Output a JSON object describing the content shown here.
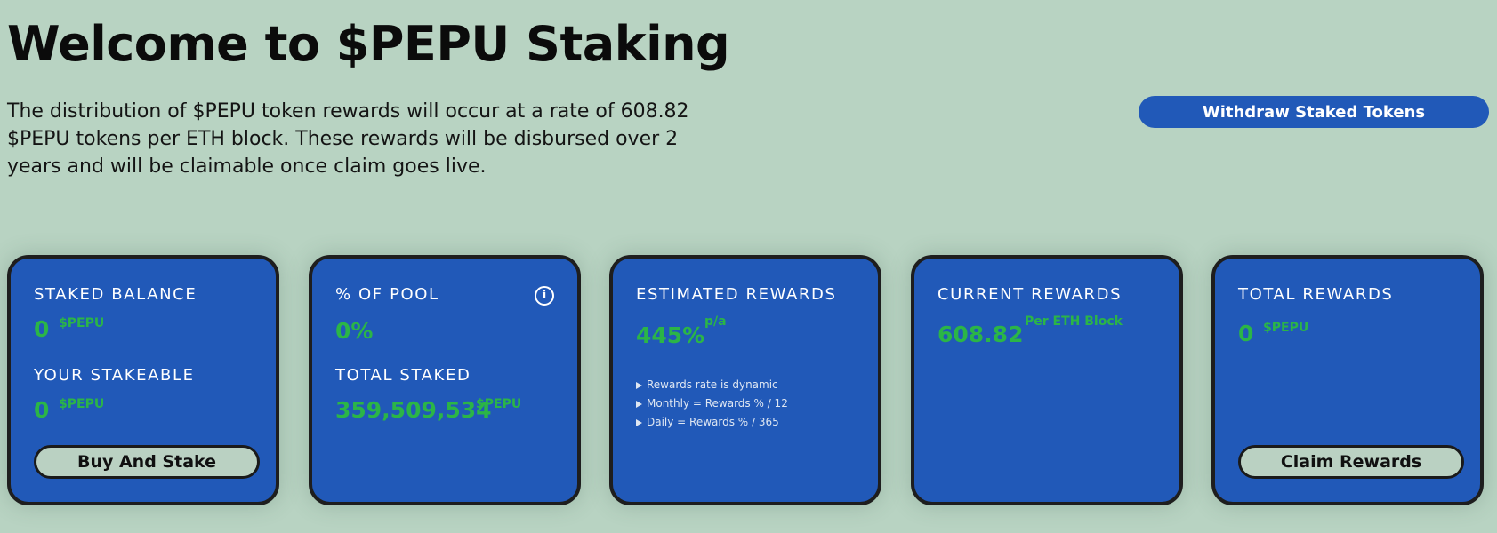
{
  "header": {
    "title": "Welcome to $PEPU Staking",
    "description": "The distribution of $PEPU token rewards will occur at a rate of 608.82 $PEPU tokens per ETH block. These rewards will be disbursed over 2 years and will be claimable once claim goes live.",
    "withdraw_label": "Withdraw Staked Tokens"
  },
  "cards": {
    "staked": {
      "label": "STAKED BALANCE",
      "value": "0",
      "unit": "$PEPU",
      "stakeable_label": "YOUR STAKEABLE",
      "stakeable_value": "0",
      "stakeable_unit": "$PEPU",
      "button": "Buy And Stake"
    },
    "pool": {
      "label": "% OF POOL",
      "value": "0%",
      "total_label": "TOTAL STAKED",
      "total_value": "359,509,534",
      "total_unit": "$PEPU",
      "info_glyph": "i"
    },
    "estimated": {
      "label": "ESTIMATED REWARDS",
      "value": "445%",
      "unit": "p/a",
      "notes": [
        "Rewards rate is dynamic",
        "Monthly = Rewards % / 12",
        "Daily = Rewards % / 365"
      ]
    },
    "current": {
      "label": "CURRENT REWARDS",
      "value": "608.82",
      "unit": "Per ETH Block"
    },
    "total": {
      "label": "TOTAL REWARDS",
      "value": "0",
      "unit": "$PEPU",
      "button": "Claim Rewards"
    }
  },
  "colors": {
    "background": "#b8d3c2",
    "card": "#2159b8",
    "accent_green": "#2bb547",
    "border": "#1e1e1e"
  }
}
